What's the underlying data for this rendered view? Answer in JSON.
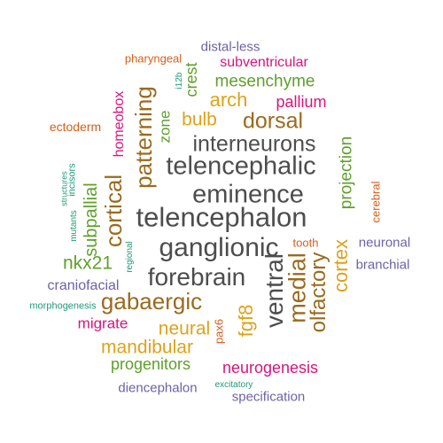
{
  "palette": {
    "gray": "#4d4d4d",
    "brown": "#9a6a1e",
    "gold": "#dda21b",
    "green": "#5f9f2c",
    "magenta": "#d6157c",
    "orange": "#d35f1c",
    "purple": "#6c62a8",
    "teal": "#1f9a76"
  },
  "words": [
    {
      "text": "telencephalon",
      "color": "gray"
    },
    {
      "text": "ganglionic",
      "color": "gray"
    },
    {
      "text": "eminence",
      "color": "gray"
    },
    {
      "text": "telencephalic",
      "color": "gray"
    },
    {
      "text": "forebrain",
      "color": "gray"
    },
    {
      "text": "interneurons",
      "color": "gray"
    },
    {
      "text": "ventral",
      "color": "gray"
    },
    {
      "text": "medial",
      "color": "brown"
    },
    {
      "text": "olfactory",
      "color": "brown"
    },
    {
      "text": "patterning",
      "color": "brown"
    },
    {
      "text": "cortical",
      "color": "brown"
    },
    {
      "text": "gabaergic",
      "color": "brown"
    },
    {
      "text": "dorsal",
      "color": "brown"
    },
    {
      "text": "cortex",
      "color": "gold"
    },
    {
      "text": "fgf8",
      "color": "gold"
    },
    {
      "text": "neural",
      "color": "gold"
    },
    {
      "text": "mandibular",
      "color": "gold"
    },
    {
      "text": "arch",
      "color": "gold"
    },
    {
      "text": "bulb",
      "color": "gold"
    },
    {
      "text": "nkx21",
      "color": "green"
    },
    {
      "text": "subpallial",
      "color": "green"
    },
    {
      "text": "projection",
      "color": "green"
    },
    {
      "text": "mesenchyme",
      "color": "green"
    },
    {
      "text": "progenitors",
      "color": "green"
    },
    {
      "text": "zone",
      "color": "green"
    },
    {
      "text": "crest",
      "color": "green"
    },
    {
      "text": "neurogenesis",
      "color": "magenta"
    },
    {
      "text": "migrate",
      "color": "magenta"
    },
    {
      "text": "homeobox",
      "color": "magenta"
    },
    {
      "text": "subventricular",
      "color": "magenta"
    },
    {
      "text": "pallium",
      "color": "magenta"
    },
    {
      "text": "ectoderm",
      "color": "orange"
    },
    {
      "text": "pharyngeal",
      "color": "orange"
    },
    {
      "text": "tooth",
      "color": "orange"
    },
    {
      "text": "pax6",
      "color": "orange"
    },
    {
      "text": "cerebral",
      "color": "orange"
    },
    {
      "text": "craniofacial",
      "color": "purple"
    },
    {
      "text": "neuronal",
      "color": "purple"
    },
    {
      "text": "branchial",
      "color": "purple"
    },
    {
      "text": "diencephalon",
      "color": "purple"
    },
    {
      "text": "specification",
      "color": "purple"
    },
    {
      "text": "distal-less",
      "color": "purple"
    },
    {
      "text": "morphogenesis",
      "color": "teal"
    },
    {
      "text": "regional",
      "color": "teal"
    },
    {
      "text": "excitatory",
      "color": "teal"
    },
    {
      "text": "structures",
      "color": "teal"
    },
    {
      "text": "mutants",
      "color": "teal"
    },
    {
      "text": "incisors",
      "color": "teal"
    },
    {
      "text": "i12b",
      "color": "teal"
    }
  ]
}
